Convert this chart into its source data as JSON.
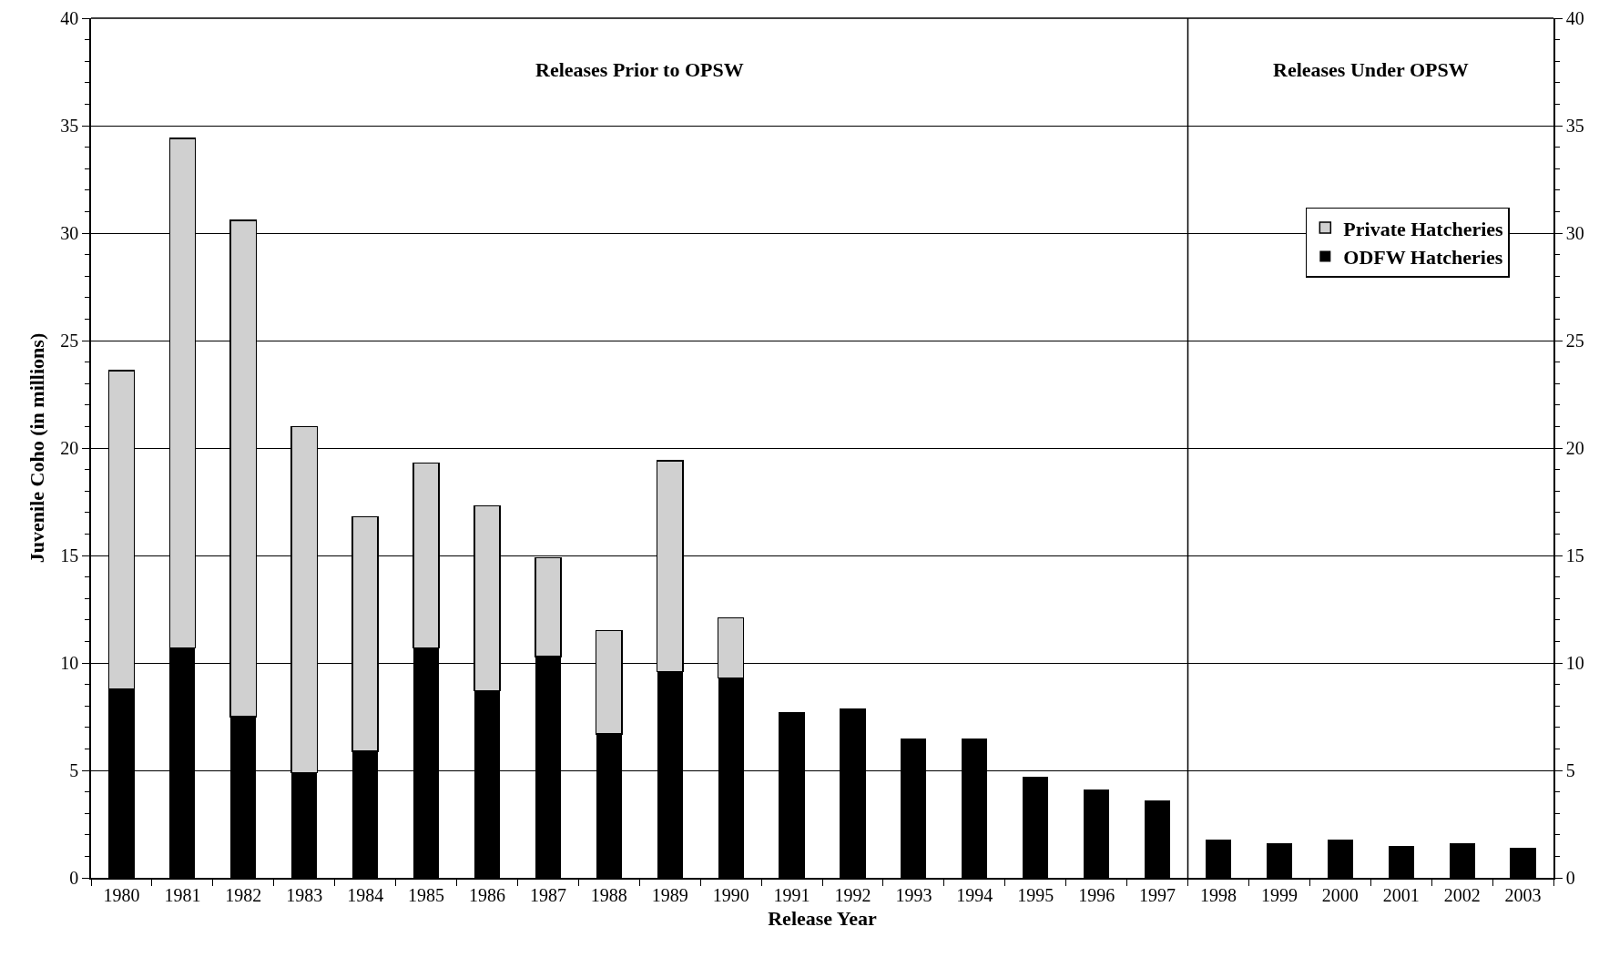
{
  "chart_data": {
    "type": "bar",
    "stacked": true,
    "xlabel": "Release Year",
    "ylabel": "Juvenile Coho (in millions)",
    "x": [
      1980,
      1981,
      1982,
      1983,
      1984,
      1985,
      1986,
      1987,
      1988,
      1989,
      1990,
      1991,
      1992,
      1993,
      1994,
      1995,
      1996,
      1997,
      1998,
      1999,
      2000,
      2001,
      2002,
      2003
    ],
    "xlim": [
      1979.5,
      2003.5
    ],
    "xticks": [
      1980,
      1981,
      1982,
      1983,
      1984,
      1985,
      1986,
      1987,
      1988,
      1989,
      1990,
      1991,
      1992,
      1993,
      1994,
      1995,
      1996,
      1997,
      1998,
      1999,
      2000,
      2001,
      2002,
      2003
    ],
    "series": [
      {
        "name": "ODFW Hatcheries",
        "color": "#000000",
        "values": [
          8.8,
          10.7,
          7.5,
          4.9,
          5.9,
          10.7,
          8.7,
          10.3,
          6.7,
          9.6,
          9.3,
          7.7,
          7.9,
          6.5,
          6.5,
          4.7,
          4.1,
          3.6,
          1.8,
          1.6,
          1.8,
          1.5,
          1.6,
          1.4
        ]
      },
      {
        "name": "Private Hatcheries",
        "color": "#d0d0d0",
        "values": [
          14.8,
          23.7,
          23.1,
          16.1,
          10.9,
          8.6,
          8.6,
          4.6,
          4.8,
          9.8,
          2.8,
          null,
          null,
          null,
          null,
          null,
          null,
          null,
          null,
          null,
          null,
          null,
          null,
          null
        ]
      }
    ],
    "ylim": [
      0,
      40
    ],
    "yticks": [
      0,
      5,
      10,
      15,
      20,
      25,
      30,
      35,
      40
    ],
    "y2lim": [
      0,
      40
    ],
    "y2ticks": [
      0,
      5,
      10,
      15,
      20,
      25,
      30,
      35,
      40
    ],
    "ref_lines": [
      {
        "axis": "x",
        "value": 1997.5,
        "color": "#000000"
      }
    ],
    "annotations": [
      "Releases Prior to OPSW",
      "Releases Under OPSW"
    ],
    "grid": "y",
    "legend": "top right"
  }
}
